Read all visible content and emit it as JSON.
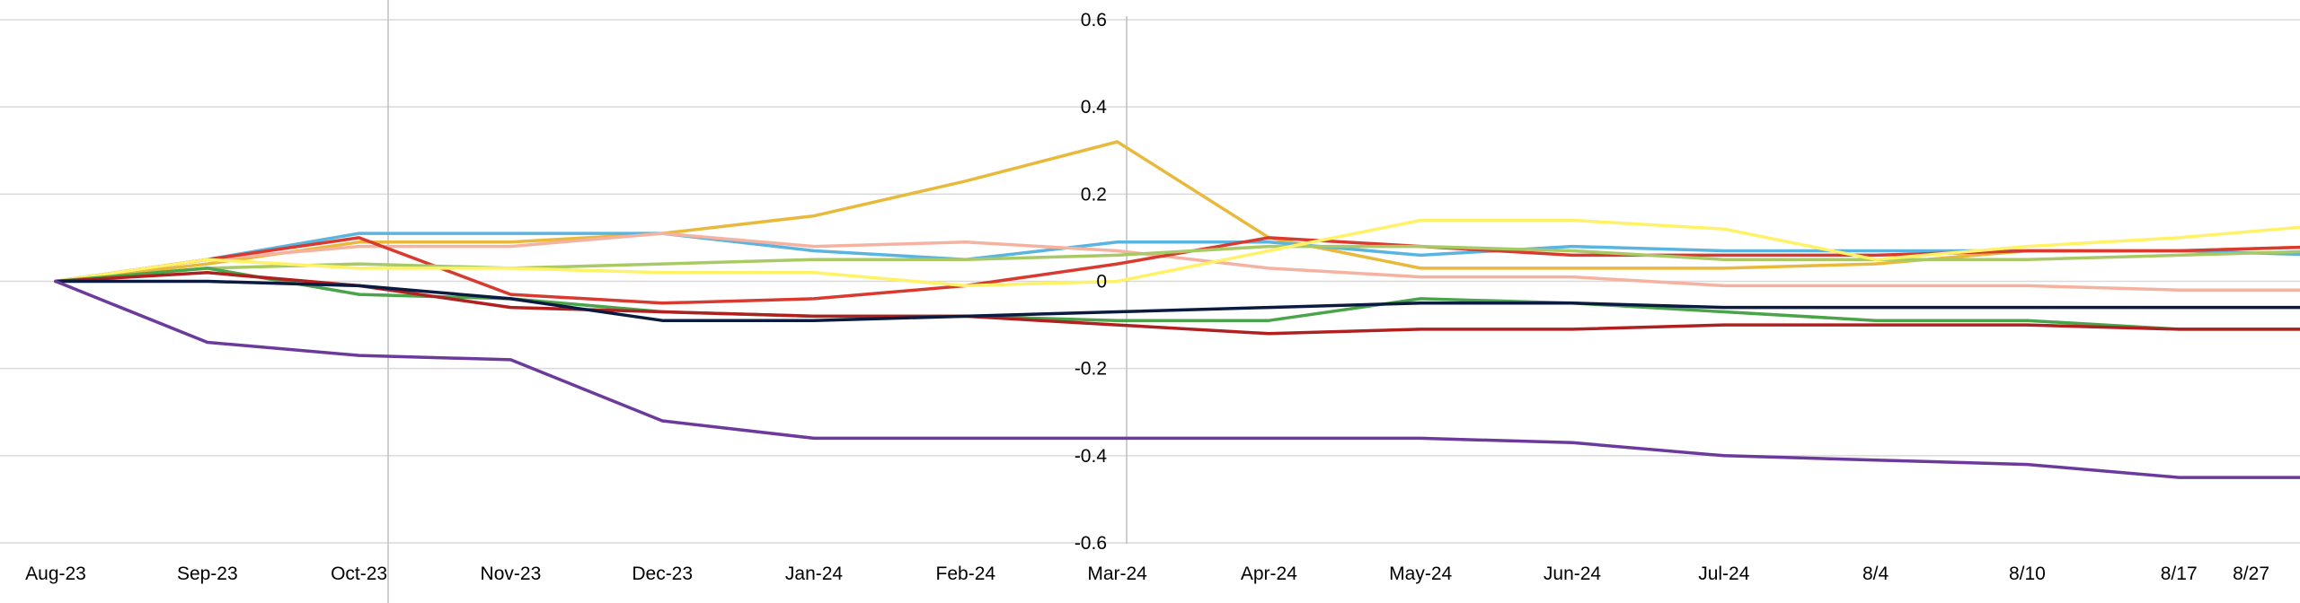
{
  "chart_data": {
    "type": "line",
    "title": "",
    "xlabel": "",
    "ylabel": "",
    "ylim": [
      -0.6,
      0.6
    ],
    "yticks": [
      0.6,
      0.4,
      0.2,
      0,
      -0.2,
      -0.4,
      -0.6
    ],
    "ytick_labels": [
      "0.6",
      "0.4",
      "0.2",
      "0",
      "-0.2",
      "-0.4",
      "-0.6"
    ],
    "grid": true,
    "legend": "none",
    "categories": [
      "Aug-23",
      "Sep-23",
      "Oct-23",
      "Nov-23",
      "Dec-23",
      "Jan-24",
      "Feb-24",
      "Mar-24",
      "Apr-24",
      "May-24",
      "Jun-24",
      "Jul-24",
      "8/4",
      "8/10",
      "8/17",
      "8/27"
    ],
    "series": [
      {
        "color": "#e8b93b",
        "values": [
          0,
          0.04,
          0.09,
          0.09,
          0.11,
          0.15,
          0.23,
          0.32,
          0.1,
          0.03,
          0.03,
          0.03,
          0.04,
          0.07,
          0.07,
          0.08
        ]
      },
      {
        "color": "#5ab4e0",
        "values": [
          0,
          0.05,
          0.11,
          0.11,
          0.11,
          0.07,
          0.05,
          0.09,
          0.09,
          0.06,
          0.08,
          0.07,
          0.07,
          0.07,
          0.07,
          0.06
        ]
      },
      {
        "color": "#f5b2a0",
        "values": [
          0,
          0.05,
          0.08,
          0.08,
          0.11,
          0.08,
          0.09,
          0.07,
          0.03,
          0.01,
          0.01,
          -0.01,
          -0.01,
          -0.01,
          -0.02,
          -0.02
        ]
      },
      {
        "color": "#d93a2f",
        "values": [
          0,
          0.05,
          0.1,
          -0.03,
          -0.05,
          -0.04,
          -0.01,
          0.04,
          0.1,
          0.08,
          0.06,
          0.06,
          0.06,
          0.07,
          0.07,
          0.08
        ]
      },
      {
        "color": "#a8c964",
        "values": [
          0,
          0.03,
          0.04,
          0.03,
          0.04,
          0.05,
          0.05,
          0.06,
          0.08,
          0.08,
          0.07,
          0.05,
          0.05,
          0.05,
          0.06,
          0.07
        ]
      },
      {
        "color": "#fff266",
        "values": [
          0,
          0.05,
          0.03,
          0.03,
          0.02,
          0.02,
          -0.01,
          0.0,
          0.07,
          0.14,
          0.14,
          0.12,
          0.05,
          0.08,
          0.1,
          0.13
        ]
      },
      {
        "color": "#4aa44a",
        "values": [
          0,
          0.03,
          -0.03,
          -0.04,
          -0.07,
          -0.08,
          -0.08,
          -0.09,
          -0.09,
          -0.04,
          -0.05,
          -0.07,
          -0.09,
          -0.09,
          -0.11,
          -0.11
        ]
      },
      {
        "color": "#b02020",
        "values": [
          0,
          0.02,
          -0.01,
          -0.06,
          -0.07,
          -0.08,
          -0.08,
          -0.1,
          -0.12,
          -0.11,
          -0.11,
          -0.1,
          -0.1,
          -0.1,
          -0.11,
          -0.11
        ]
      },
      {
        "color": "#0b1a40",
        "values": [
          0,
          0,
          -0.01,
          -0.04,
          -0.09,
          -0.09,
          -0.08,
          -0.07,
          -0.06,
          -0.05,
          -0.05,
          -0.06,
          -0.06,
          -0.06,
          -0.06,
          -0.06
        ]
      },
      {
        "color": "#6b3a9c",
        "values": [
          0,
          -0.14,
          -0.17,
          -0.18,
          -0.32,
          -0.36,
          -0.36,
          -0.36,
          -0.36,
          -0.36,
          -0.37,
          -0.4,
          -0.41,
          -0.42,
          -0.45,
          -0.45
        ]
      }
    ]
  }
}
